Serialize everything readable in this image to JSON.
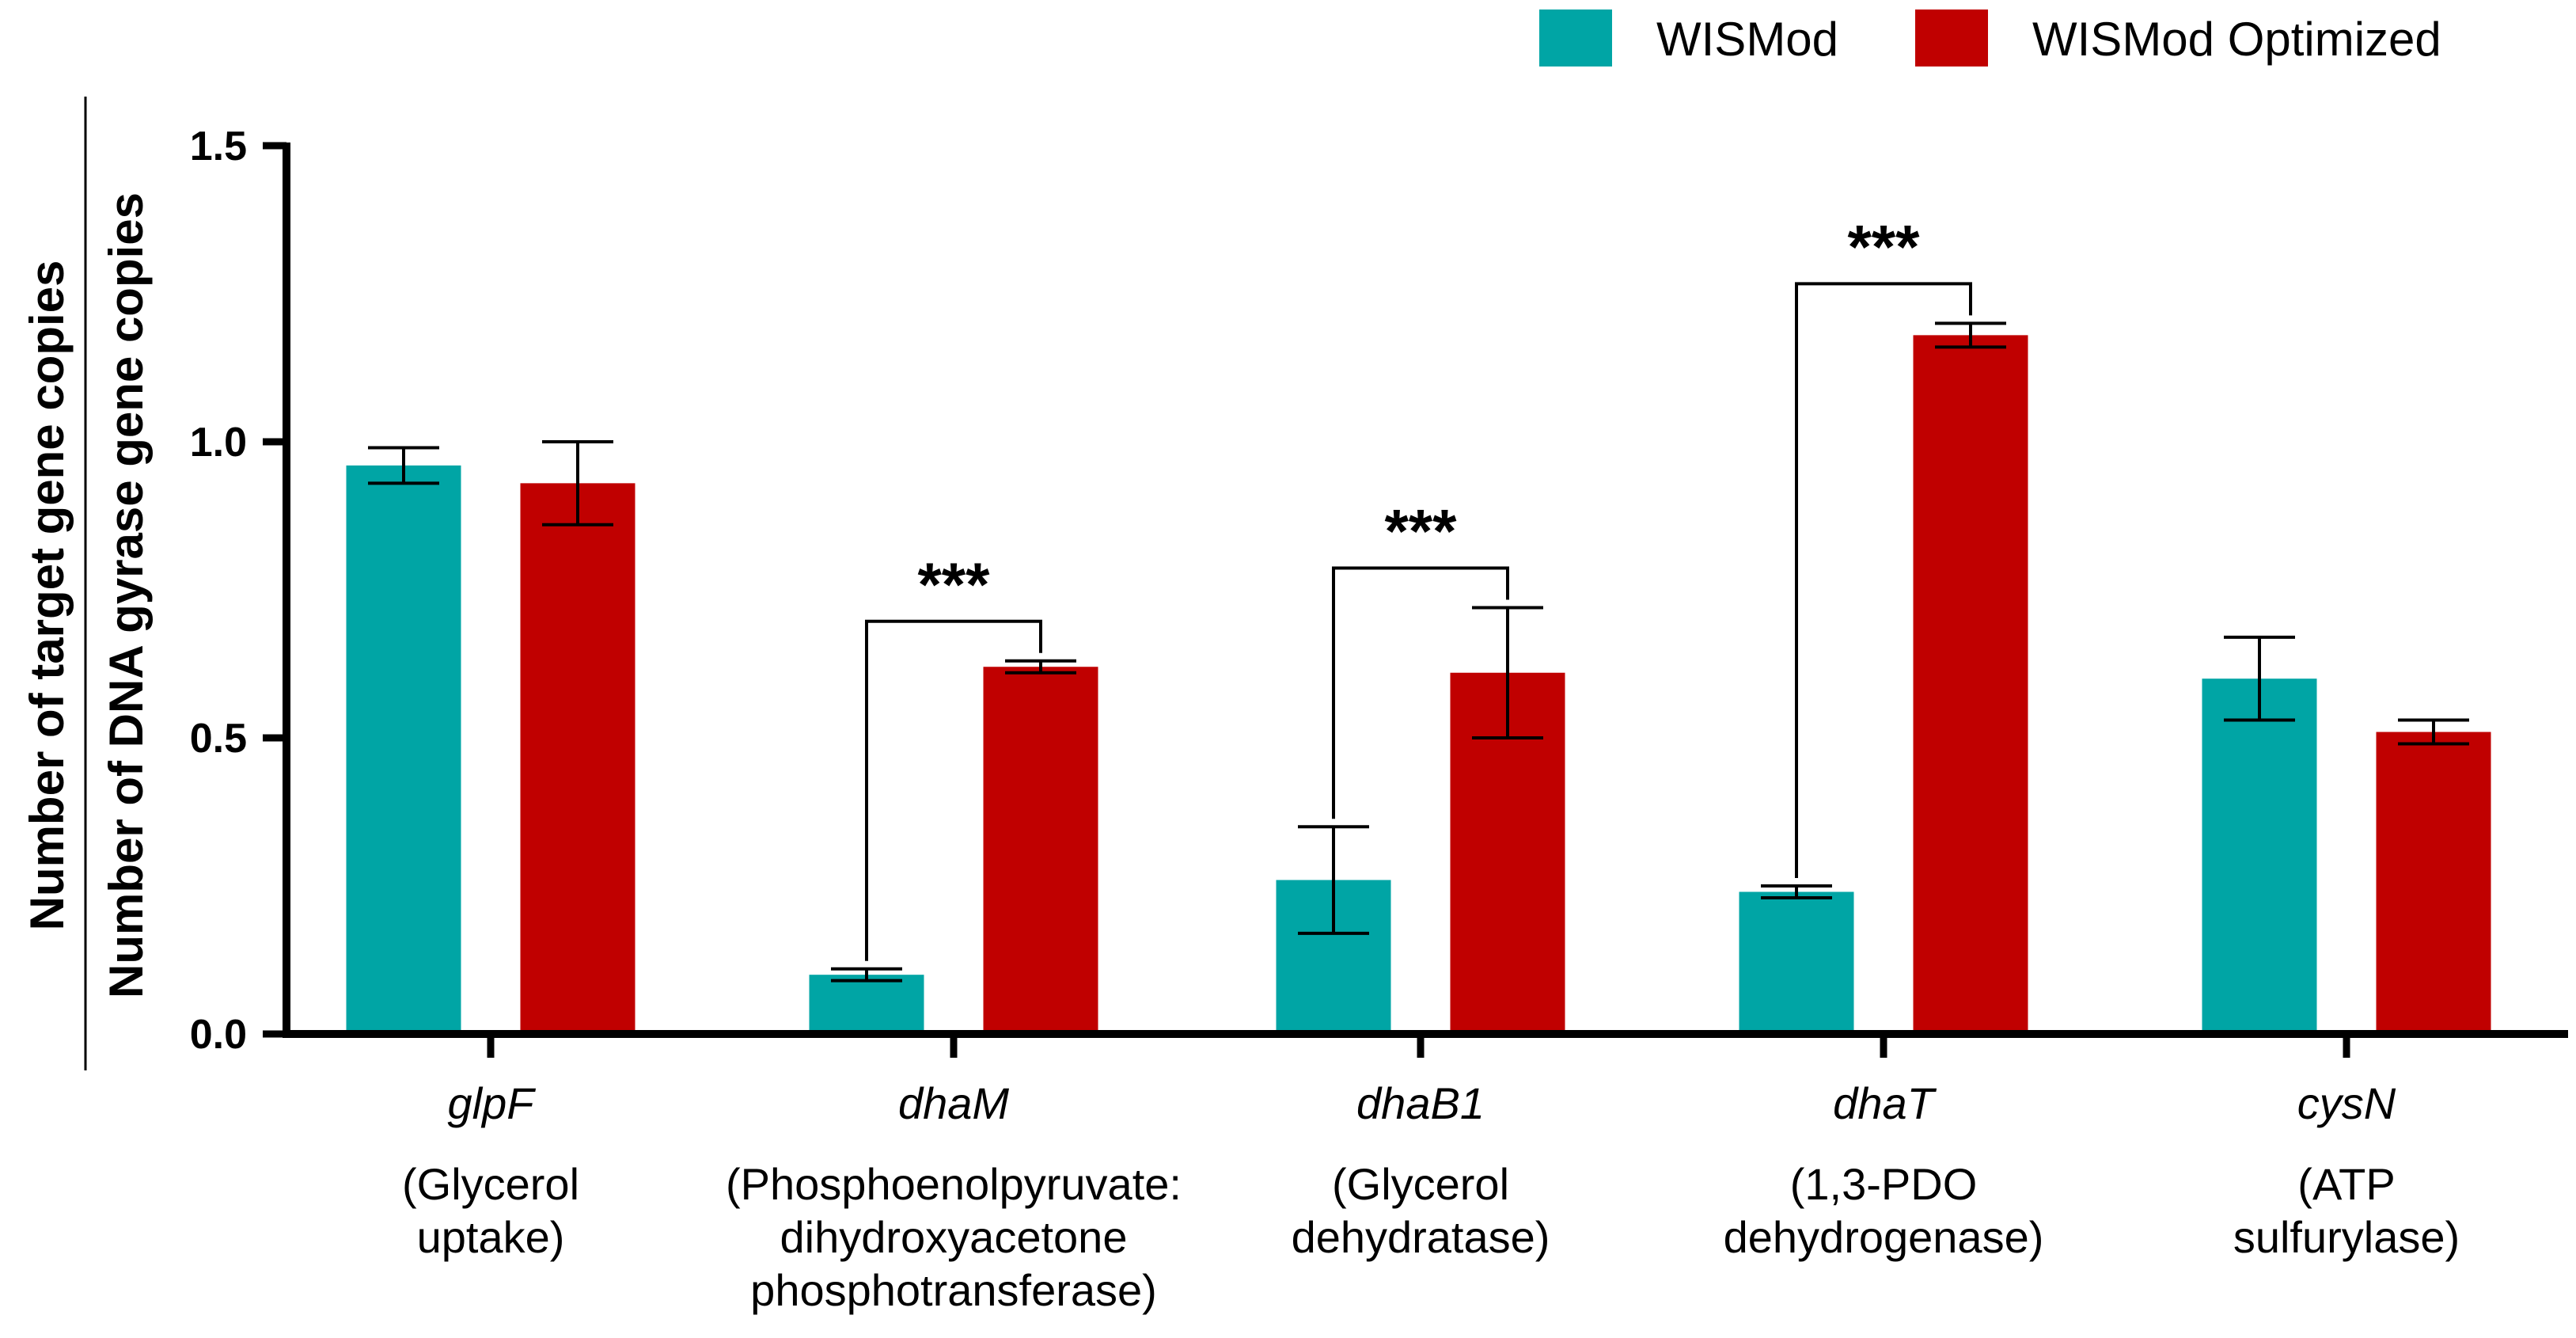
{
  "chart_data": {
    "type": "bar",
    "ylabel_numerator": "Number of target gene copies",
    "ylabel_denominator": "Number of DNA gyrase gene copies",
    "ylim": [
      0,
      1.5
    ],
    "yticks": [
      0.0,
      0.5,
      1.0,
      1.5
    ],
    "ytick_labels": [
      "0.0",
      "0.5",
      "1.0",
      "1.5"
    ],
    "legend_position": "top-right",
    "categories": [
      {
        "gene": "glpF",
        "description": [
          "(Glycerol",
          "uptake)"
        ]
      },
      {
        "gene": "dhaM",
        "description": [
          "(Phosphoenolpyruvate:",
          "dihydroxyacetone",
          "phosphotransferase)"
        ]
      },
      {
        "gene": "dhaB1",
        "description": [
          "(Glycerol",
          "dehydratase)"
        ]
      },
      {
        "gene": "dhaT",
        "description": [
          "(1,3-PDO",
          "dehydrogenase)"
        ]
      },
      {
        "gene": "cysN",
        "description": [
          "(ATP",
          "sulfurylase)"
        ]
      }
    ],
    "series": [
      {
        "name": "WISMod",
        "color": "#00a5a5",
        "values": [
          0.96,
          0.1,
          0.26,
          0.24,
          0.6
        ],
        "errors": [
          0.03,
          0.01,
          0.09,
          0.01,
          0.07
        ]
      },
      {
        "name": "WISMod Optimized",
        "color": "#c00000",
        "values": [
          0.93,
          0.62,
          0.61,
          1.18,
          0.51
        ],
        "errors": [
          0.07,
          0.01,
          0.11,
          0.02,
          0.02
        ]
      }
    ],
    "significance": [
      {
        "category": 1,
        "label": "***"
      },
      {
        "category": 2,
        "label": "***"
      },
      {
        "category": 3,
        "label": "***"
      }
    ]
  }
}
